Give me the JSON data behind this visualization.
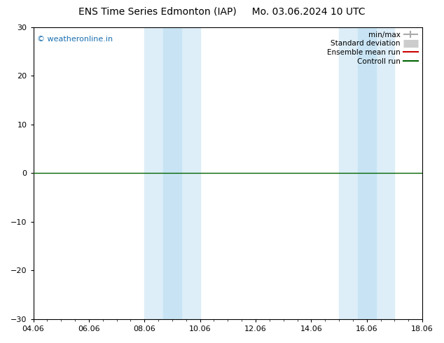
{
  "title": "ENS Time Series Edmonton (IAP)     Mo. 03.06.2024 10 UTC",
  "watermark": "© weatheronline.in",
  "xlim": [
    0,
    14
  ],
  "ylim": [
    -30,
    30
  ],
  "yticks": [
    -30,
    -20,
    -10,
    0,
    10,
    20,
    30
  ],
  "xtick_labels": [
    "04.06",
    "06.06",
    "08.06",
    "10.06",
    "12.06",
    "14.06",
    "16.06",
    "18.06"
  ],
  "xtick_positions": [
    0,
    2,
    4,
    6,
    8,
    10,
    12,
    14
  ],
  "shaded_regions": [
    {
      "x_start": 4.0,
      "x_end": 4.667,
      "color": "#ddeef8"
    },
    {
      "x_start": 4.667,
      "x_end": 6.0,
      "color": "#ddeef8"
    },
    {
      "x_start": 11.333,
      "x_end": 12.0,
      "color": "#ddeef8"
    },
    {
      "x_start": 12.0,
      "x_end": 13.333,
      "color": "#ddeef8"
    }
  ],
  "hline_y": 0,
  "hline_color": "#006400",
  "bg_color": "#ffffff",
  "plot_bg_color": "#ffffff",
  "title_fontsize": 10,
  "watermark_color": "#1a6fae",
  "legend_entries": [
    {
      "label": "min/max",
      "color": "#aaaaaa",
      "lw": 1.5,
      "type": "line_with_caps"
    },
    {
      "label": "Standard deviation",
      "color": "#cccccc",
      "lw": 8,
      "type": "thick_line"
    },
    {
      "label": "Ensemble mean run",
      "color": "#cc0000",
      "lw": 1.5,
      "type": "line"
    },
    {
      "label": "Controll run",
      "color": "#006400",
      "lw": 1.5,
      "type": "line"
    }
  ]
}
